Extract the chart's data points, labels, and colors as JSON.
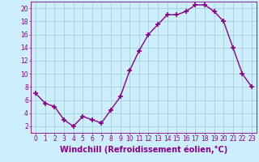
{
  "x": [
    0,
    1,
    2,
    3,
    4,
    5,
    6,
    7,
    8,
    9,
    10,
    11,
    12,
    13,
    14,
    15,
    16,
    17,
    18,
    19,
    20,
    21,
    22,
    23
  ],
  "y": [
    7,
    5.5,
    5,
    3,
    2,
    3.5,
    3,
    2.5,
    4.5,
    6.5,
    10.5,
    13.5,
    16,
    17.5,
    19,
    19,
    19.5,
    20.5,
    20.5,
    19.5,
    18,
    14,
    10,
    8
  ],
  "line_color": "#880088",
  "marker": "+",
  "marker_size": 4,
  "marker_lw": 1.2,
  "bg_color": "#cceeff",
  "grid_color": "#99cccc",
  "xlabel": "Windchill (Refroidissement éolien,°C)",
  "xlabel_color": "#880088",
  "xlabel_fontsize": 7,
  "ylim": [
    1,
    21
  ],
  "xlim": [
    -0.5,
    23.5
  ],
  "yticks": [
    2,
    4,
    6,
    8,
    10,
    12,
    14,
    16,
    18,
    20
  ],
  "xticks": [
    0,
    1,
    2,
    3,
    4,
    5,
    6,
    7,
    8,
    9,
    10,
    11,
    12,
    13,
    14,
    15,
    16,
    17,
    18,
    19,
    20,
    21,
    22,
    23
  ],
  "tick_color": "#880088",
  "tick_fontsize": 5.5,
  "spine_color": "#880088",
  "line_width": 1.0
}
